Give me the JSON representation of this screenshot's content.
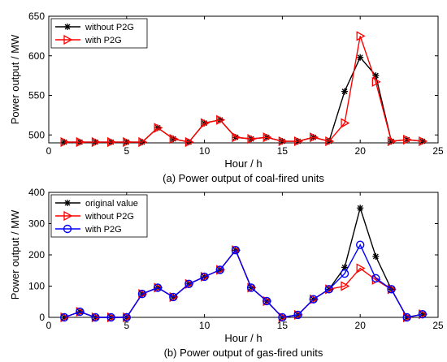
{
  "chart_data": [
    {
      "type": "line",
      "caption": "(a) Power output of coal-fired units",
      "xlabel": "Hour / h",
      "ylabel": "Power output / MW",
      "xlim": [
        0,
        25
      ],
      "ylim": [
        490,
        650
      ],
      "xticks": [
        0,
        5,
        10,
        15,
        20,
        25
      ],
      "yticks": [
        500,
        550,
        600,
        650
      ],
      "grid": false,
      "legend_position": "top-left",
      "x": [
        1,
        2,
        3,
        4,
        5,
        6,
        7,
        8,
        9,
        10,
        11,
        12,
        13,
        14,
        15,
        16,
        17,
        18,
        19,
        20,
        21,
        22,
        23,
        24
      ],
      "series": [
        {
          "name": "without P2G",
          "color": "#000000",
          "marker": "star",
          "values": [
            491,
            491,
            491,
            491,
            491,
            491,
            509,
            495,
            491,
            515,
            519,
            497,
            495,
            497,
            492,
            492,
            497,
            492,
            555,
            598,
            575,
            492,
            494,
            492
          ]
        },
        {
          "name": "with P2G",
          "color": "#ff0000",
          "marker": "triangle-right",
          "values": [
            491,
            491,
            491,
            491,
            491,
            491,
            509,
            495,
            491,
            515,
            519,
            497,
            495,
            497,
            492,
            492,
            497,
            492,
            515,
            625,
            567,
            492,
            494,
            492
          ]
        }
      ]
    },
    {
      "type": "line",
      "caption": "(b) Power output of gas-fired units",
      "xlabel": "Hour / h",
      "ylabel": "Power output / MW",
      "xlim": [
        0,
        25
      ],
      "ylim": [
        0,
        400
      ],
      "xticks": [
        0,
        5,
        10,
        15,
        20,
        25
      ],
      "yticks": [
        0,
        100,
        200,
        300,
        400
      ],
      "grid": false,
      "legend_position": "top-left",
      "x": [
        1,
        2,
        3,
        4,
        5,
        6,
        7,
        8,
        9,
        10,
        11,
        12,
        13,
        14,
        15,
        16,
        17,
        18,
        19,
        20,
        21,
        22,
        23,
        24
      ],
      "series": [
        {
          "name": "original value",
          "color": "#000000",
          "marker": "star",
          "values": [
            0,
            18,
            0,
            0,
            0,
            75,
            95,
            65,
            107,
            130,
            152,
            215,
            95,
            52,
            0,
            8,
            58,
            90,
            160,
            350,
            195,
            90,
            0,
            10
          ]
        },
        {
          "name": "without P2G",
          "color": "#ff0000",
          "marker": "triangle-right",
          "values": [
            0,
            18,
            0,
            0,
            0,
            75,
            95,
            65,
            107,
            130,
            152,
            215,
            95,
            52,
            0,
            8,
            58,
            90,
            100,
            157,
            120,
            90,
            0,
            10
          ]
        },
        {
          "name": "with P2G",
          "color": "#0000ff",
          "marker": "circle",
          "values": [
            0,
            18,
            0,
            0,
            0,
            75,
            95,
            65,
            107,
            130,
            152,
            215,
            95,
            52,
            0,
            8,
            58,
            90,
            140,
            232,
            125,
            90,
            0,
            10
          ]
        }
      ]
    }
  ]
}
